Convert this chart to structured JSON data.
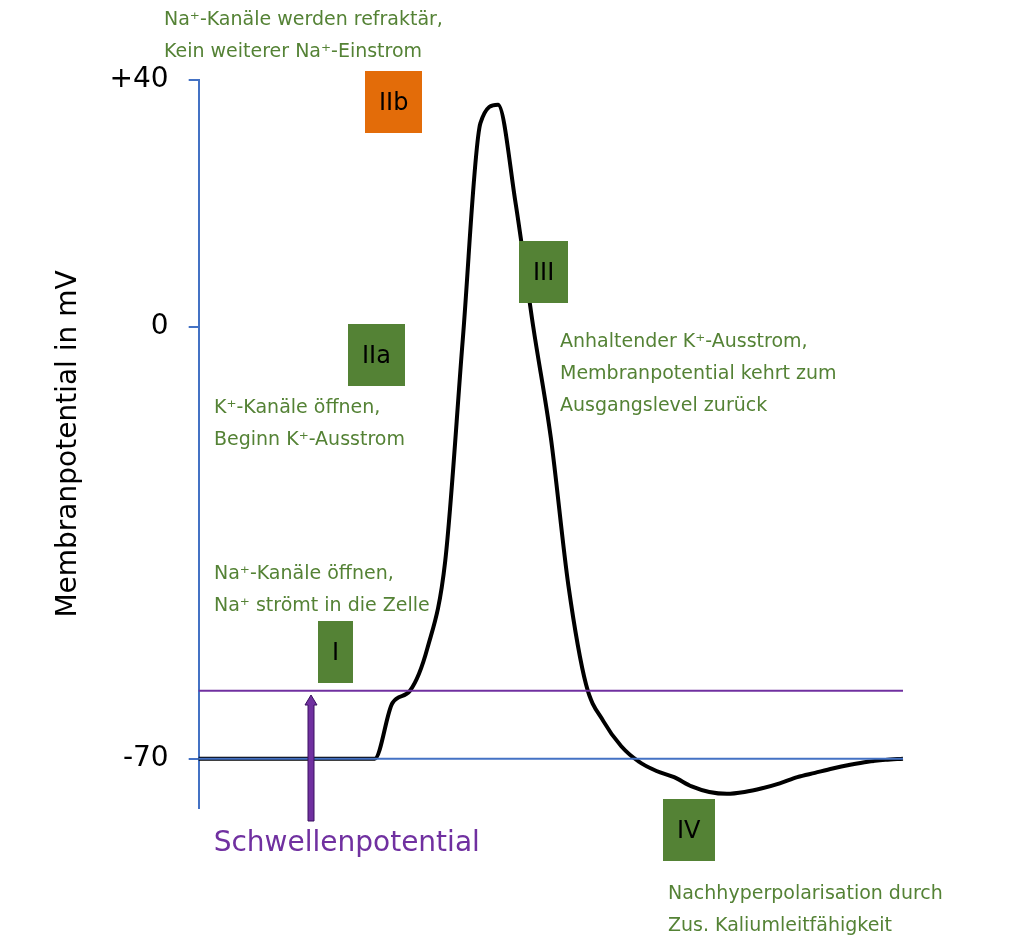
{
  "chart_data": {
    "type": "line",
    "ylabel": "Membranpotential in mV",
    "categories": [
      null,
      null,
      null,
      null,
      null,
      null,
      null,
      null,
      null,
      null,
      null,
      null,
      null,
      null,
      null,
      null,
      null,
      null,
      null,
      null,
      null,
      null,
      null,
      null,
      null,
      null,
      null,
      null,
      null,
      null,
      null,
      null,
      null,
      null,
      null,
      null,
      null,
      null,
      null,
      null,
      null
    ],
    "series": [
      {
        "color": "#000000",
        "values": [
          -70,
          -70,
          -70,
          -70,
          -70,
          -70,
          -70,
          -70,
          -70,
          -70,
          -70,
          -61,
          -59,
          -52,
          -38,
          -2,
          33,
          36,
          20,
          0,
          -18,
          -42,
          -58,
          -64,
          -68,
          -70.5,
          -72,
          -73,
          -74.5,
          -75.4,
          -75.7,
          -75.4,
          -74.8,
          -74,
          -73,
          -72.3,
          -71.6,
          -71,
          -70.5,
          -70.2,
          -70
        ]
      }
    ],
    "ylim": [
      -78,
      40
    ],
    "yticks": [
      {
        "value": 40,
        "label": "+40"
      },
      0,
      -70
    ],
    "grid": false,
    "legend": false,
    "tick_labels": "y",
    "marker": "none",
    "line_style": "solid",
    "ref_lines": [
      {
        "axis": "y",
        "value": -59,
        "label": "Schwellenpotential",
        "color": "#7030a0"
      },
      {
        "axis": "y",
        "value": -70,
        "color": "#4472c4"
      }
    ],
    "annotations": [
      "Na⁺-Kanäle werden refraktär,\nKein weiterer Na⁺-Einstrom",
      "IIb",
      "III",
      "IIa",
      "Anhaltender K⁺-Ausstrom,\nMembranpotential kehrt zum\nAusgangslevel zurück",
      "K⁺-Kanäle öffnen,\nBeginn K⁺-Ausstrom",
      "Na⁺-Kanäle öffnen,\nNa⁺ strömt in die Zelle",
      "I",
      "IV",
      "Nachhyperpolarisation durch\nZus. Kaliumleitfähigkeit"
    ]
  }
}
